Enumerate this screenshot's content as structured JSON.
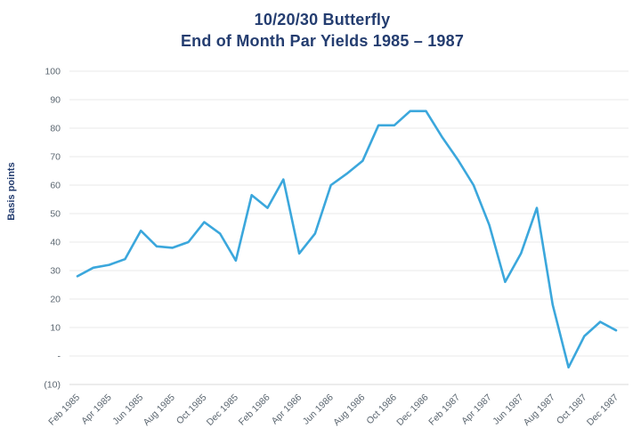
{
  "chart_data": {
    "type": "line",
    "title": "10/20/30 Butterfly",
    "subtitle": "End of Month Par Yields 1985 – 1987",
    "ylabel": "Basis points",
    "ylim": [
      -10,
      100
    ],
    "y_tick_interval": 10,
    "y_tick_labels": [
      "100",
      "90",
      "80",
      "70",
      "60",
      "50",
      "40",
      "30",
      "20",
      "10",
      "-",
      "(10)"
    ],
    "x_tick_labels": [
      "Feb 1985",
      "Apr 1985",
      "Jun 1985",
      "Aug 1985",
      "Oct 1985",
      "Dec 1985",
      "Feb 1986",
      "Apr 1986",
      "Jun 1986",
      "Aug 1986",
      "Oct 1986",
      "Dec 1986",
      "Feb 1987",
      "Apr 1987",
      "Jun 1987",
      "Aug 1987",
      "Oct 1987",
      "Dec 1987"
    ],
    "categories": [
      "Feb 1985",
      "Mar 1985",
      "Apr 1985",
      "May 1985",
      "Jun 1985",
      "Jul 1985",
      "Aug 1985",
      "Sep 1985",
      "Oct 1985",
      "Nov 1985",
      "Dec 1985",
      "Jan 1986",
      "Feb 1986",
      "Mar 1986",
      "Apr 1986",
      "May 1986",
      "Jun 1986",
      "Jul 1986",
      "Aug 1986",
      "Sep 1986",
      "Oct 1986",
      "Nov 1986",
      "Dec 1986",
      "Jan 1987",
      "Feb 1987",
      "Mar 1987",
      "Apr 1987",
      "May 1987",
      "Jun 1987",
      "Jul 1987",
      "Aug 1987",
      "Sep 1987",
      "Oct 1987",
      "Nov 1987",
      "Dec 1987"
    ],
    "series": [
      {
        "name": "10/20/30 butterfly end of month par yield",
        "values": [
          28,
          31,
          32,
          34,
          44,
          38.5,
          38,
          40,
          47,
          43,
          33.5,
          56.5,
          52,
          62,
          36,
          43,
          60,
          64,
          68.5,
          81,
          81,
          86,
          86,
          77,
          69,
          60,
          46,
          26,
          36,
          52,
          18,
          -4,
          7,
          12,
          9
        ]
      }
    ],
    "legend": "none",
    "grid": "horizontal"
  },
  "colors": {
    "line": "#3ba7dc",
    "title_text": "#243d70",
    "tick_text": "#5b6670",
    "gridline": "#e8e8e8",
    "axis_line": "#d9d9d9"
  }
}
